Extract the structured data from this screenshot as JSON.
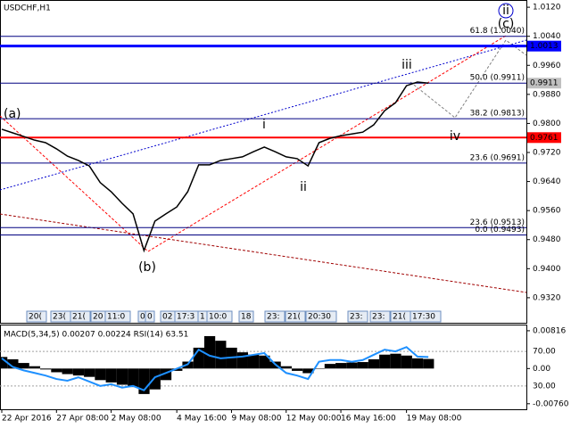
{
  "chart_data": [
    {
      "type": "line",
      "title": "USDCHF,H1",
      "categories": [
        "22 Apr 2016",
        null,
        null,
        null,
        null,
        "27 Apr 08:00",
        null,
        null,
        null,
        null,
        "2 May 08:00",
        null,
        null,
        null,
        null,
        null,
        "4 May 16:00",
        null,
        null,
        null,
        null,
        "9 May 08:00",
        null,
        null,
        null,
        null,
        "12 May 00:00",
        null,
        null,
        null,
        null,
        "16 May 16:00",
        null,
        null,
        null,
        null,
        null,
        "19 May 08:00",
        null,
        null
      ],
      "values": [
        0.9784,
        0.9774,
        0.9764,
        0.9754,
        0.9747,
        0.973,
        0.971,
        0.9698,
        0.9683,
        0.9637,
        0.9612,
        0.958,
        0.9551,
        0.945,
        0.9531,
        0.9551,
        0.957,
        0.9612,
        0.9686,
        0.9686,
        0.9698,
        0.9703,
        0.9708,
        0.9722,
        0.9735,
        0.9722,
        0.9708,
        0.9703,
        0.9683,
        0.9747,
        0.9759,
        0.9766,
        0.9771,
        0.9776,
        0.9796,
        0.9835,
        0.9857,
        0.9904,
        0.9914,
        0.9911
      ],
      "color": "#000000",
      "ylim": [
        0.9251,
        1.0135
      ],
      "yticks": [
        {
          "value": 1.012,
          "label": "1.0120"
        },
        {
          "value": 1.004,
          "label": "1.0040"
        },
        {
          "value": 0.996,
          "label": "0.9960"
        },
        {
          "value": 0.988,
          "label": "0.9880"
        },
        {
          "value": 0.98,
          "label": "0.9800"
        },
        {
          "value": 0.972,
          "label": "0.9720"
        },
        {
          "value": 0.964,
          "label": "0.9640"
        },
        {
          "value": 0.956,
          "label": "0.9560"
        },
        {
          "value": 0.948,
          "label": "0.9480"
        },
        {
          "value": 0.94,
          "label": "0.9400"
        },
        {
          "value": 0.932,
          "label": "0.9320"
        }
      ],
      "levels": [
        {
          "value": 1.004,
          "label": "61.8 (1.0040)"
        },
        {
          "value": 0.9911,
          "label": "50.0 (0.9911)"
        },
        {
          "value": 0.9813,
          "label": "38.2 (0.9813)"
        },
        {
          "value": 0.9691,
          "label": "23.6 (0.9691)"
        },
        {
          "value": 0.9513,
          "label": "23.6 (0.9513)"
        },
        {
          "value": 0.9493,
          "label": "0.0 (0.9493)"
        }
      ],
      "level_color": "#000080",
      "price_tags": [
        {
          "value": 1.0013,
          "label": "1.0013",
          "color": "#0000ff",
          "line_width": 3
        },
        {
          "value": 0.9761,
          "label": "0.9761",
          "color": "#ff0000",
          "line_width": 2
        },
        {
          "value": 0.9911,
          "label": "0.9911",
          "color": "#c0c0c0",
          "line_width": 0
        }
      ],
      "annotations": [
        {
          "text": "(a)",
          "color": "#ff0000"
        },
        {
          "text": "(b)",
          "color": "#ff0000"
        },
        {
          "text": "(c)",
          "color": "#ff0000"
        },
        {
          "text": "ii",
          "color": "#0000cd"
        },
        {
          "text": "i",
          "color": "#808080"
        },
        {
          "text": "ii",
          "color": "#808080"
        },
        {
          "text": "iii",
          "color": "#808080"
        },
        {
          "text": "iv",
          "color": "#808080"
        }
      ],
      "time_boxes": [
        "20(",
        "23(",
        "21(",
        "20",
        "11:0",
        "0",
        "0",
        "02",
        "17:3",
        "1",
        "10:0",
        "18",
        "23:",
        "21(",
        "20:30",
        "23:",
        "23:",
        "21(",
        "17:30"
      ]
    },
    {
      "type": "macd",
      "title": "MACD(5,34,5) 0.00207 0.00224 RSI(14) 63.51",
      "series": [
        {
          "color": "#000000",
          "values": [
            0.0025,
            0.002,
            0.0012,
            0.0005,
            -0.0002,
            -0.0008,
            -0.0012,
            -0.0015,
            -0.0018,
            -0.0025,
            -0.003,
            -0.0035,
            -0.004,
            -0.0055,
            -0.0045,
            -0.0025,
            -0.0005,
            0.0015,
            0.0045,
            0.007,
            0.006,
            0.0045,
            0.0035,
            0.003,
            0.0028,
            0.0015,
            0.0005,
            -0.0005,
            -0.001,
            0.0,
            0.001,
            0.0012,
            0.0013,
            0.0014,
            0.002,
            0.003,
            0.0032,
            0.0028,
            0.0022,
            0.00207
          ]
        },
        {
          "color": "#1e90ff",
          "axis": "y2",
          "values": [
            62,
            52,
            48,
            45,
            42,
            38,
            36,
            40,
            35,
            30,
            32,
            28,
            30,
            25,
            40,
            45,
            50,
            55,
            72,
            65,
            62,
            63,
            64,
            66,
            68,
            55,
            45,
            42,
            38,
            58,
            60,
            60,
            58,
            60,
            66,
            72,
            70,
            75,
            64,
            63.51
          ]
        }
      ],
      "ylim": [
        -0.0086,
        0.0093
      ],
      "yticks": [
        {
          "value": 0.00816,
          "label": "0.00816"
        },
        {
          "value": 0,
          "label": "0.00"
        },
        {
          "value": -0.0076,
          "label": "-0.00760"
        }
      ],
      "y2lim": [
        4,
        100
      ],
      "y2ticks": [
        {
          "value": 70,
          "label": "70.00"
        },
        {
          "value": 30,
          "label": "30.00"
        }
      ],
      "grid": true
    }
  ]
}
